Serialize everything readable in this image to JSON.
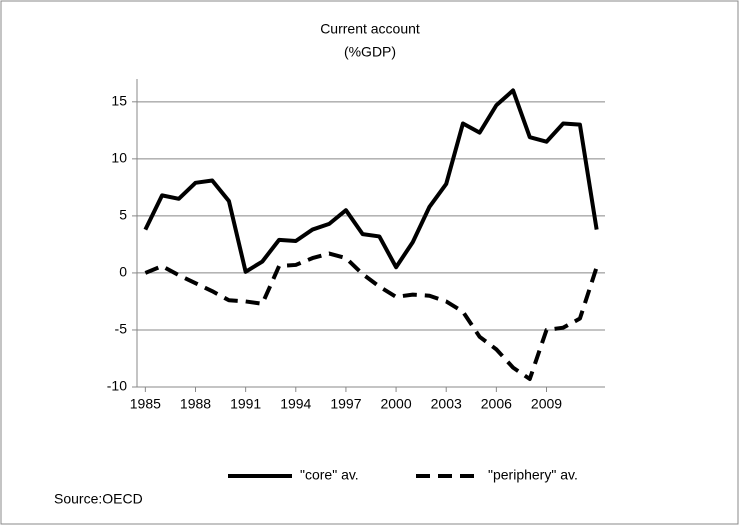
{
  "chart_data": {
    "type": "line",
    "title": "Current account",
    "subtitle": "(%GDP)",
    "source": "Source:OECD",
    "x": [
      1985,
      1986,
      1987,
      1988,
      1989,
      1990,
      1991,
      1992,
      1993,
      1994,
      1995,
      1996,
      1997,
      1998,
      1999,
      2000,
      2001,
      2002,
      2003,
      2004,
      2005,
      2006,
      2007,
      2008,
      2009,
      2010,
      2011,
      2012
    ],
    "series": [
      {
        "name": "\"core\" av.",
        "color": "#000000",
        "dash": "solid",
        "values": [
          3.8,
          6.8,
          6.5,
          7.9,
          8.1,
          6.3,
          0.1,
          1.0,
          2.9,
          2.8,
          3.8,
          4.3,
          5.5,
          3.4,
          3.2,
          0.5,
          2.7,
          5.8,
          7.8,
          13.1,
          12.3,
          14.7,
          16.0,
          11.9,
          11.5,
          13.1,
          13.0,
          3.8
        ]
      },
      {
        "name": "\"periphery\" av.",
        "color": "#000000",
        "dash": "dashed",
        "values": [
          0.0,
          0.6,
          -0.2,
          -0.9,
          -1.6,
          -2.4,
          -2.5,
          -2.7,
          0.6,
          0.7,
          1.3,
          1.7,
          1.3,
          -0.1,
          -1.2,
          -2.1,
          -1.9,
          -2.0,
          -2.5,
          -3.4,
          -5.6,
          -6.7,
          -8.3,
          -9.3,
          -5.0,
          -4.8,
          -4.0,
          0.5
        ]
      }
    ],
    "xlim": [
      1984.5,
      2012.5
    ],
    "xticks": [
      1985,
      1988,
      1991,
      1994,
      1997,
      2000,
      2003,
      2006,
      2009
    ],
    "ylim": [
      -10,
      17
    ],
    "yticks": [
      -10,
      -5,
      0,
      5,
      10,
      15
    ],
    "grid": true,
    "legend": "bottom"
  }
}
